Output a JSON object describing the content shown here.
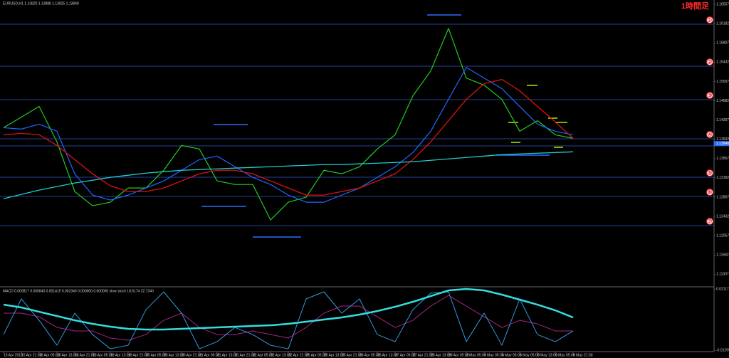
{
  "chart_data": [
    {
      "type": "line",
      "title": "EURUSD,H1 1.13820 1.13888 1.13825 1.13848",
      "annotation": "1時間足",
      "categories": [
        "15 Apr 2016",
        "15 Apr 21:00",
        "18 Apr 05:00",
        "18 Apr 13:00",
        "18 Apr 21:00",
        "19 Apr 05:00",
        "19 Apr 13:00",
        "19 Apr 21:00",
        "20 Apr 05:00",
        "20 Apr 13:00",
        "20 Apr 21:00",
        "21 Apr 05:00",
        "21 Apr 13:00",
        "21 Apr 21:00",
        "22 Apr 05:00",
        "22 Apr 13:00",
        "22 Apr 21:00",
        "25 Apr 05:00",
        "25 Apr 13:00",
        "25 Apr 21:00",
        "26 Apr 05:00",
        "26 Apr 13:00",
        "27 Apr 05:00",
        "27 Apr 21:00",
        "28 Apr 13:00",
        "29 Apr 05:00",
        "2 May 05:00",
        "3 May 05:00",
        "4 May 05:00",
        "5 May 05:00",
        "6 May 13:00",
        "9 May 05:00",
        "9 May 21:00"
      ],
      "series": [
        {
          "color": "#22cc22",
          "width": 1.2,
          "values": [
            1.14157,
            1.14364,
            1.14571,
            1.13881,
            1.12915,
            1.12639,
            1.12708,
            1.12984,
            1.12984,
            1.13329,
            1.13812,
            1.13743,
            1.13122,
            1.13053,
            1.13053,
            1.12363,
            1.12708,
            1.12805,
            1.13329,
            1.1326,
            1.13398,
            1.13743,
            1.14019,
            1.14778,
            1.15261,
            1.16089,
            1.15123,
            1.14985,
            1.14709,
            1.14088,
            1.14295,
            1.14019,
            1.1395
          ]
        },
        {
          "color": "#2266ff",
          "width": 1.2,
          "values": [
            1.14157,
            1.1413,
            1.14226,
            1.14088,
            1.1326,
            1.12846,
            1.1275,
            1.12846,
            1.12984,
            1.13122,
            1.13329,
            1.13536,
            1.13605,
            1.13398,
            1.13191,
            1.13053,
            1.12846,
            1.12708,
            1.12708,
            1.12846,
            1.12984,
            1.13191,
            1.13398,
            1.13674,
            1.14088,
            1.14709,
            1.1533,
            1.15123,
            1.14916,
            1.14571,
            1.14226,
            1.14088,
            1.14019
          ]
        },
        {
          "color": "#dd1111",
          "width": 1.3,
          "values": [
            1.14019,
            1.14047,
            1.14019,
            1.13812,
            1.13536,
            1.1326,
            1.13026,
            1.12915,
            1.12915,
            1.12984,
            1.13122,
            1.1326,
            1.13329,
            1.13329,
            1.1326,
            1.13122,
            1.12984,
            1.12846,
            1.12846,
            1.12915,
            1.12984,
            1.13122,
            1.1326,
            1.13536,
            1.13881,
            1.14295,
            1.14709,
            1.15013,
            1.15096,
            1.14875,
            1.14571,
            1.14268,
            1.1395
          ]
        },
        {
          "color": "#22cccc",
          "width": 1.3,
          "values": [
            1.12777,
            1.1286,
            1.12943,
            1.13012,
            1.13081,
            1.13136,
            1.13191,
            1.13233,
            1.13274,
            1.13302,
            1.13329,
            1.13343,
            1.13357,
            1.13371,
            1.13385,
            1.13398,
            1.13412,
            1.13426,
            1.1344,
            1.1344,
            1.13454,
            1.13467,
            1.13481,
            1.13495,
            1.13523,
            1.1355,
            1.13578,
            1.13605,
            1.13633,
            1.13647,
            1.13661,
            1.13674,
            1.13688
          ]
        }
      ],
      "levels": [
        {
          "value": 1.16171,
          "label": "①"
        },
        {
          "value": 1.15354,
          "label": "②"
        },
        {
          "value": 1.14703,
          "label": "③"
        },
        {
          "value": 1.13942,
          "label": "④"
        },
        1.13803,
        {
          "value": 1.13194,
          "label": "⑤"
        },
        {
          "value": 1.1282,
          "label": "⑥"
        },
        {
          "value": 1.12252,
          "label": "⑦"
        }
      ],
      "current_price": 1.13848,
      "ylim": [
        1.112,
        1.166
      ],
      "yticks": [
        1.16557,
        1.16182,
        1.15807,
        1.15432,
        1.15057,
        1.14682,
        1.14307,
        1.13932,
        1.13557,
        1.13182,
        1.12807,
        1.12432,
        1.12057,
        1.11682,
        1.11307
      ]
    },
    {
      "type": "line",
      "title": "MACD 0.000817 0.000843 0.001419 0.002349 0.000000 0.000000 slow stoch 18.6174 22.7340",
      "series": [
        {
          "color": "#aa2288",
          "width": 1,
          "values": [
            0.00767,
            0.00767,
            0.00568,
            -0.00029,
            -0.00228,
            -0.00228,
            -0.00626,
            -0.00746,
            -0.00427,
            0.00369,
            0.00767,
            -0.00029,
            -0.00427,
            -0.00427,
            -0.00228,
            -0.00427,
            -0.00626,
            -0.00029,
            0.00767,
            0.01165,
            0.01165,
            0.00568,
            -0.00029,
            0.00369,
            0.01165,
            0.01762,
            0.01165,
            0.00568,
            -0.00029,
            0.00369,
            0.0017,
            -0.00228,
            -0.00228
          ]
        },
        {
          "color": "#3399dd",
          "width": 1,
          "values": [
            -0.00427,
            0.01563,
            0.00369,
            -0.01024,
            0.00767,
            -0.00427,
            -0.01223,
            -0.01024,
            0.00965,
            0.01961,
            0.00767,
            -0.01223,
            -0.00825,
            -0.00029,
            -0.00427,
            -0.01024,
            -0.01223,
            0.01563,
            0.01961,
            0.00767,
            0.01563,
            -0.00427,
            -0.00825,
            0.00965,
            0.01881,
            0.01961,
            -0.00825,
            0.00767,
            -0.01024,
            0.01563,
            -0.00427,
            -0.00825,
            -0.00228
          ]
        },
        {
          "color": "#33dddd",
          "width": 2.5,
          "values": [
            0.01244,
            0.01085,
            0.00846,
            0.00608,
            0.00369,
            0.0017,
            0.00011,
            -0.00109,
            -0.00149,
            -0.00149,
            -0.00109,
            -0.00069,
            -0.00029,
            0.00011,
            0.0005,
            0.0009,
            0.0017,
            0.00289,
            0.00409,
            0.00528,
            0.00687,
            0.00886,
            0.01125,
            0.01404,
            0.01722,
            0.0204,
            0.0212,
            0.0204,
            0.01802,
            0.01523,
            0.01244,
            0.00926,
            0.00528
          ]
        }
      ],
      "ylim": [
        -0.013,
        0.0212
      ],
      "yticks": [
        0.021179,
        -0.012998
      ]
    }
  ]
}
